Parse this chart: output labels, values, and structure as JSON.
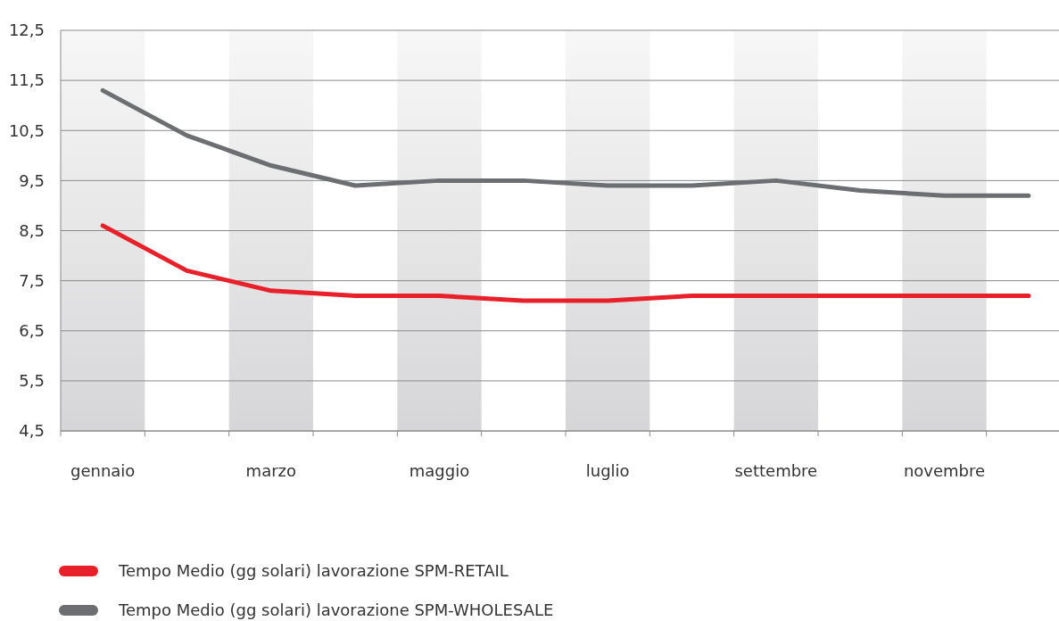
{
  "chart_data": {
    "type": "line",
    "categories": [
      "gennaio",
      null,
      "marzo",
      null,
      "maggio",
      null,
      "luglio",
      null,
      "settembre",
      null,
      "novembre",
      null
    ],
    "series": [
      {
        "name": "Tempo Medio (gg solari) lavorazione SPM-RETAIL",
        "color": "#e8202a",
        "values": [
          8.6,
          7.7,
          7.3,
          7.2,
          7.2,
          7.1,
          7.1,
          7.2,
          7.2,
          7.2,
          7.2,
          7.2
        ]
      },
      {
        "name": "Tempo Medio (gg solari) lavorazione SPM-WHOLESALE",
        "color": "#6d6e71",
        "values": [
          11.3,
          10.4,
          9.8,
          9.4,
          9.5,
          9.5,
          9.4,
          9.4,
          9.5,
          9.3,
          9.2,
          9.2
        ]
      }
    ],
    "ylim": [
      4.5,
      12.5
    ],
    "yticks": [
      {
        "value": 4.5,
        "label": "4,5"
      },
      {
        "value": 5.5,
        "label": "5,5"
      },
      {
        "value": 6.5,
        "label": "6,5"
      },
      {
        "value": 7.5,
        "label": "7,5"
      },
      {
        "value": 8.5,
        "label": "8,5"
      },
      {
        "value": 9.5,
        "label": "9,5"
      },
      {
        "value": 10.5,
        "label": "10,5"
      },
      {
        "value": 11.5,
        "label": "11,5"
      },
      {
        "value": 12.5,
        "label": "12,5"
      }
    ],
    "bands": [
      {
        "axis": "x",
        "from": "gennaio",
        "to": "gennaio"
      },
      {
        "axis": "x",
        "from": "marzo",
        "to": "marzo"
      },
      {
        "axis": "x",
        "from": "maggio",
        "to": "maggio"
      },
      {
        "axis": "x",
        "from": "luglio",
        "to": "luglio"
      },
      {
        "axis": "x",
        "from": "settembre",
        "to": "settembre"
      },
      {
        "axis": "x",
        "from": "novembre",
        "to": "novembre"
      }
    ],
    "grid": "y",
    "legend": "bottom",
    "marker": "none",
    "line_style": "solid"
  }
}
